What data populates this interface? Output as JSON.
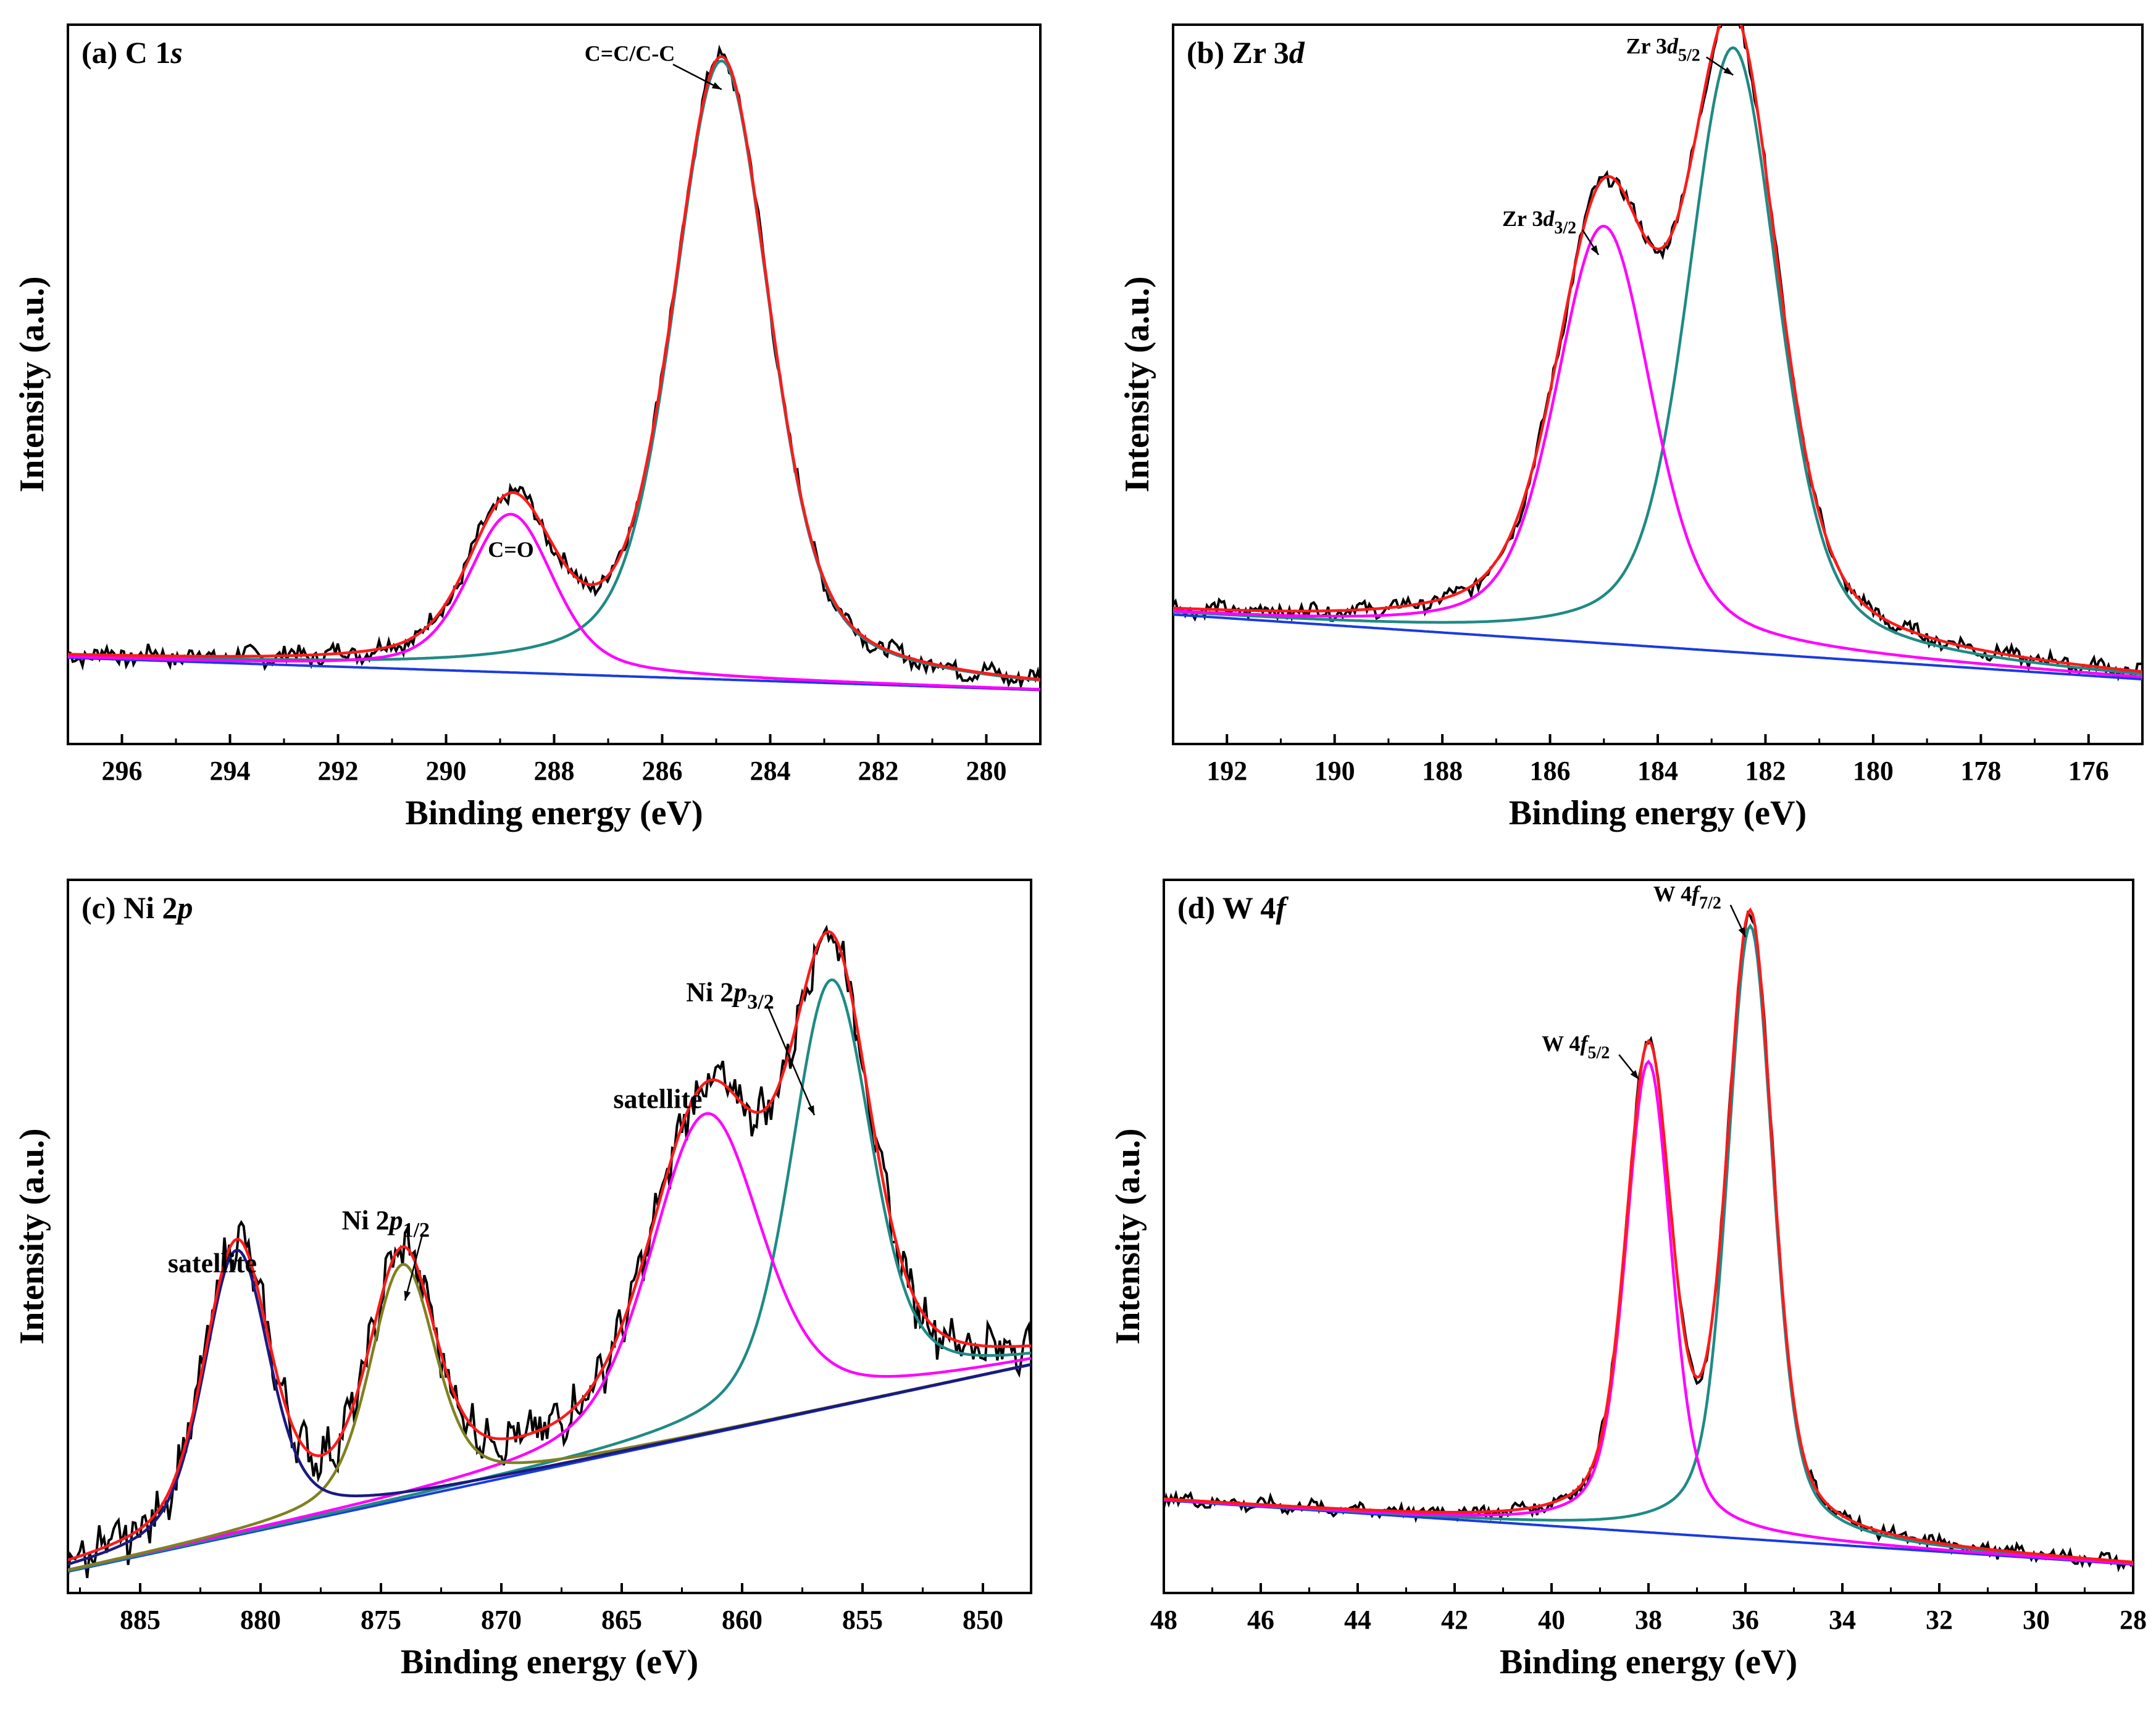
{
  "chart_data": [
    {
      "type": "line",
      "panel": "a",
      "title": "(a) C 1s",
      "title_prefix": "(a) C 1",
      "title_italic": "s",
      "xlabel": "Binding energy (eV)",
      "ylabel": "Intensity (a.u.)",
      "xlim": [
        297,
        279
      ],
      "ylim": [
        0,
        100
      ],
      "xticks": [
        296,
        294,
        292,
        290,
        288,
        286,
        284,
        282,
        280
      ],
      "peaks": [
        {
          "label": "C=C/C-C",
          "center": 284.9,
          "height": 86,
          "width": 0.85,
          "fit_color": "#1f8a85"
        },
        {
          "label": "C=O",
          "center": 288.8,
          "height": 22,
          "width": 0.75,
          "fit_color": "#ff00ff"
        }
      ],
      "baseline": [
        12,
        7.5
      ],
      "noise": 1.1,
      "annotations": [
        {
          "text": "C=C/C-C",
          "x": 286.6,
          "y": 95,
          "arrow_to": [
            284.9,
            91
          ]
        },
        {
          "text": "C=O",
          "x": 288.8,
          "y": 26,
          "arrow_to": null
        }
      ]
    },
    {
      "type": "line",
      "panel": "b",
      "title": "(b) Zr 3d",
      "title_prefix": "(b) Zr 3",
      "title_italic": "d",
      "xlabel": "Binding energy (eV)",
      "ylabel": "Intensity (a.u.)",
      "xlim": [
        193,
        175
      ],
      "ylim": [
        0,
        100
      ],
      "xticks": [
        192,
        190,
        188,
        186,
        184,
        182,
        180,
        178,
        176
      ],
      "peaks": [
        {
          "label": "Zr 3d5/2",
          "center": 182.6,
          "height": 84,
          "width": 0.8,
          "fit_color": "#1f8a85"
        },
        {
          "label": "Zr 3d3/2",
          "center": 185.0,
          "height": 58,
          "width": 0.85,
          "fit_color": "#ff00ff"
        }
      ],
      "baseline": [
        18,
        9
      ],
      "noise": 0.9,
      "annotations": [
        {
          "text": "Zr 3d",
          "sub": "5/2",
          "x": 183.9,
          "y": 96,
          "arrow_to": [
            182.6,
            93
          ]
        },
        {
          "text": "Zr 3d",
          "sub": "3/2",
          "x": 186.2,
          "y": 72,
          "arrow_to": [
            185.1,
            68
          ]
        }
      ]
    },
    {
      "type": "line",
      "panel": "c",
      "title": "(c) Ni 2p",
      "title_prefix": "(c) Ni 2",
      "title_italic": "p",
      "xlabel": "Binding energy (eV)",
      "ylabel": "Intensity (a.u.)",
      "xlim": [
        888,
        848
      ],
      "ylim": [
        0,
        100
      ],
      "xticks": [
        885,
        880,
        875,
        870,
        865,
        860,
        855,
        850
      ],
      "peaks": [
        {
          "label": "Ni 2p3/2",
          "center": 856.3,
          "height": 60,
          "width": 1.6,
          "fit_color": "#1f8a85"
        },
        {
          "label": "satellite",
          "center": 861.5,
          "height": 45,
          "width": 2.2,
          "fit_color": "#ff00ff"
        },
        {
          "label": "Ni 2p1/2",
          "center": 874.1,
          "height": 33,
          "width": 1.3,
          "fit_color": "#808020"
        },
        {
          "label": "satellite",
          "center": 881.0,
          "height": 40,
          "width": 1.3,
          "fit_color": "#1a1a80"
        }
      ],
      "baseline": [
        3,
        32
      ],
      "noise": 2.6,
      "annotations": [
        {
          "text": "Ni 2p",
          "sub": "3/2",
          "x": 860.5,
          "y": 83,
          "arrow_to": [
            857.0,
            67
          ]
        },
        {
          "text": "satellite",
          "sub": "",
          "x": 863.5,
          "y": 68,
          "arrow_to": null
        },
        {
          "text": "Ni 2p",
          "sub": "1/2",
          "x": 874.8,
          "y": 51,
          "arrow_to": [
            874.0,
            41
          ]
        },
        {
          "text": "satellite",
          "sub": "",
          "x": 882.0,
          "y": 45,
          "arrow_to": null
        }
      ]
    },
    {
      "type": "line",
      "panel": "d",
      "title": "(d) W 4f",
      "title_prefix": "(d) W 4",
      "title_italic": "f",
      "xlabel": "Binding energy (eV)",
      "ylabel": "Intensity (a.u.)",
      "xlim": [
        48,
        28
      ],
      "ylim": [
        0,
        100
      ],
      "xticks": [
        48,
        46,
        44,
        42,
        40,
        38,
        36,
        34,
        32,
        30,
        28
      ],
      "peaks": [
        {
          "label": "W 4f7/2",
          "center": 35.9,
          "height": 86,
          "width": 0.45,
          "fit_color": "#1f8a85"
        },
        {
          "label": "W 4f5/2",
          "center": 38.0,
          "height": 66,
          "width": 0.45,
          "fit_color": "#ff00ff"
        }
      ],
      "baseline": [
        13,
        4
      ],
      "noise": 0.8,
      "annotations": [
        {
          "text": "W 4f",
          "sub": "7/2",
          "x": 37.2,
          "y": 97,
          "arrow_to": [
            36.0,
            92
          ]
        },
        {
          "text": "W 4f",
          "sub": "5/2",
          "x": 39.5,
          "y": 76,
          "arrow_to": [
            38.2,
            72
          ]
        }
      ]
    }
  ],
  "colors": {
    "raw": "#000000",
    "envelope": "#ff1a1a",
    "background": "#1a3be0"
  }
}
